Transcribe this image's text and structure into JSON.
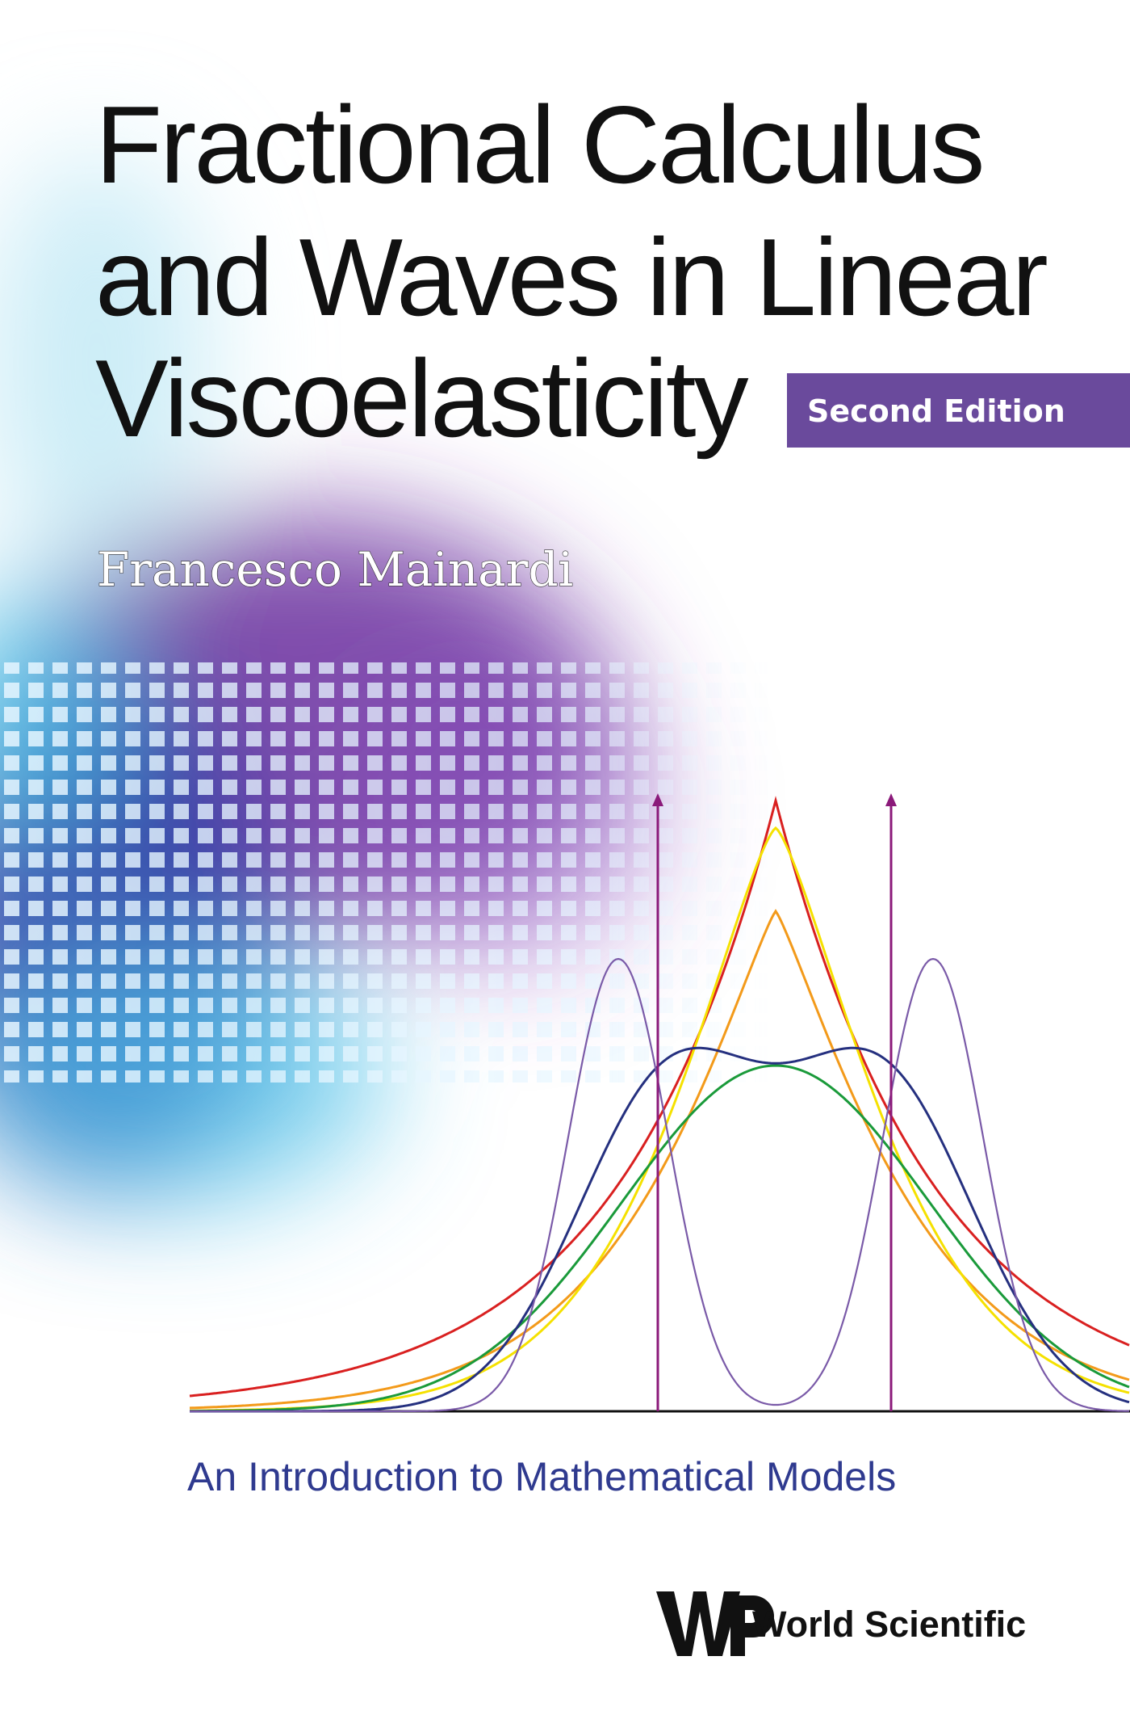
{
  "cover": {
    "title_lines": [
      "Fractional Calculus",
      "and Waves in Linear",
      "Viscoelasticity"
    ],
    "edition": "Second Edition",
    "author": "Francesco Mainardi",
    "subtitle": "An Introduction to Mathematical Models",
    "publisher": "World Scientific"
  }
}
